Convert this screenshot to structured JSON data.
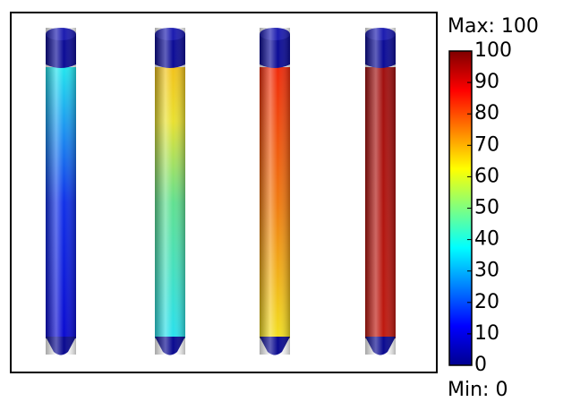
{
  "colorbar": {
    "max_label": "Max: 100",
    "min_label": "Min: 0",
    "range": [
      0,
      100
    ],
    "ticks": [
      0,
      10,
      20,
      30,
      40,
      50,
      60,
      70,
      80,
      90,
      100
    ]
  }
}
